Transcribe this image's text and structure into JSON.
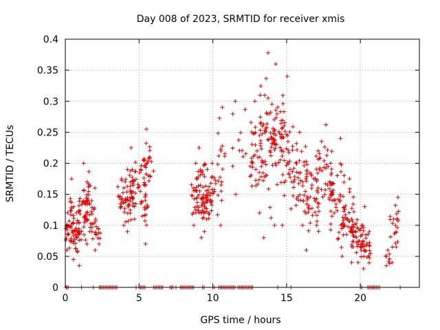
{
  "chart_data": {
    "type": "scatter",
    "title": "Day 008 of 2023, SRMTID for receiver xmis",
    "xlabel": "GPS time / hours",
    "ylabel": "SRMTID / TECUs",
    "xlim": [
      0,
      24
    ],
    "ylim": [
      0,
      0.4
    ],
    "xticks": [
      0,
      5,
      10,
      15,
      20
    ],
    "xtick_labels": [
      "0",
      "5",
      "10",
      "15",
      "20"
    ],
    "yticks": [
      0,
      0.05,
      0.1,
      0.15,
      0.2,
      0.25,
      0.3,
      0.35,
      0.4
    ],
    "ytick_labels": [
      "0",
      "0.05",
      "0.1",
      "0.15",
      "0.2",
      "0.25",
      "0.3",
      "0.35",
      "0.4"
    ],
    "grid": true,
    "marker": "plus",
    "color": "#e00000",
    "series": [
      {
        "name": "SRMTID",
        "note": "approximate per-time-window value ranges read from the scatter cloud",
        "clusters": [
          {
            "x": [
              0.0,
              0.3
            ],
            "y": [
              0.06,
              0.12
            ],
            "n": 14
          },
          {
            "x": [
              0.2,
              0.6
            ],
            "y": [
              0.045,
              0.13
            ],
            "n": 22
          },
          {
            "x": [
              0.3,
              0.45
            ],
            "y": [
              0.1,
              0.175
            ],
            "n": 10
          },
          {
            "x": [
              0.6,
              1.0
            ],
            "y": [
              0.035,
              0.12
            ],
            "n": 28
          },
          {
            "x": [
              0.9,
              1.5
            ],
            "y": [
              0.07,
              0.17
            ],
            "n": 30
          },
          {
            "x": [
              1.2,
              1.7
            ],
            "y": [
              0.09,
              0.2
            ],
            "n": 26
          },
          {
            "x": [
              1.6,
              2.1
            ],
            "y": [
              0.06,
              0.16
            ],
            "n": 22
          },
          {
            "x": [
              2.0,
              2.4
            ],
            "y": [
              0.07,
              0.11
            ],
            "n": 10
          },
          {
            "x": [
              3.5,
              4.3
            ],
            "y": [
              0.1,
              0.175
            ],
            "n": 26
          },
          {
            "x": [
              4.0,
              4.6
            ],
            "y": [
              0.09,
              0.19
            ],
            "n": 30
          },
          {
            "x": [
              4.4,
              5.2
            ],
            "y": [
              0.11,
              0.225
            ],
            "n": 32
          },
          {
            "x": [
              5.1,
              5.6
            ],
            "y": [
              0.07,
              0.19
            ],
            "n": 20
          },
          {
            "x": [
              5.3,
              6.0
            ],
            "y": [
              0.13,
              0.255
            ],
            "n": 28
          },
          {
            "x": [
              8.5,
              9.1
            ],
            "y": [
              0.1,
              0.2
            ],
            "n": 26
          },
          {
            "x": [
              8.9,
              9.6
            ],
            "y": [
              0.09,
              0.225
            ],
            "n": 36
          },
          {
            "x": [
              9.2,
              10.0
            ],
            "y": [
              0.08,
              0.19
            ],
            "n": 34
          },
          {
            "x": [
              9.8,
              10.6
            ],
            "y": [
              0.1,
              0.2
            ],
            "n": 20
          },
          {
            "x": [
              10.3,
              11.0
            ],
            "y": [
              0.17,
              0.29
            ],
            "n": 12
          },
          {
            "x": [
              11.2,
              12.3
            ],
            "y": [
              0.15,
              0.3
            ],
            "n": 12
          },
          {
            "x": [
              12.5,
              13.4
            ],
            "y": [
              0.12,
              0.3
            ],
            "n": 40
          },
          {
            "x": [
              13.2,
              14.2
            ],
            "y": [
              0.08,
              0.378
            ],
            "n": 46
          },
          {
            "x": [
              13.9,
              14.8
            ],
            "y": [
              0.1,
              0.36
            ],
            "n": 44
          },
          {
            "x": [
              14.5,
              15.5
            ],
            "y": [
              0.1,
              0.34
            ],
            "n": 40
          },
          {
            "x": [
              15.4,
              16.4
            ],
            "y": [
              0.1,
              0.25
            ],
            "n": 40
          },
          {
            "x": [
              16.2,
              17.2
            ],
            "y": [
              0.06,
              0.22
            ],
            "n": 42
          },
          {
            "x": [
              17.0,
              18.1
            ],
            "y": [
              0.1,
              0.262
            ],
            "n": 38
          },
          {
            "x": [
              17.9,
              18.9
            ],
            "y": [
              0.05,
              0.24
            ],
            "n": 44
          },
          {
            "x": [
              18.7,
              19.6
            ],
            "y": [
              0.04,
              0.175
            ],
            "n": 40
          },
          {
            "x": [
              19.4,
              20.3
            ],
            "y": [
              0.04,
              0.13
            ],
            "n": 38
          },
          {
            "x": [
              20.0,
              20.8
            ],
            "y": [
              0.03,
              0.1
            ],
            "n": 34
          },
          {
            "x": [
              21.7,
              22.0
            ],
            "y": [
              0.035,
              0.06
            ],
            "n": 8
          },
          {
            "x": [
              22.0,
              22.6
            ],
            "y": [
              0.04,
              0.145
            ],
            "n": 22
          }
        ],
        "zero_points_x": [
          0.05,
          0.1,
          0.2,
          1.1,
          1.9,
          2.3,
          2.4,
          2.5,
          2.6,
          2.7,
          2.8,
          2.9,
          3.0,
          3.1,
          3.2,
          3.3,
          3.4,
          3.5,
          4.8,
          5.0,
          5.1,
          5.2,
          5.3,
          5.4,
          6.0,
          6.1,
          6.2,
          6.3,
          6.4,
          6.5,
          6.6,
          7.1,
          7.2,
          7.3,
          7.5,
          7.8,
          7.9,
          8.0,
          8.1,
          8.2,
          8.3,
          8.4,
          8.5,
          8.6,
          8.7,
          9.3,
          9.4,
          10.0,
          10.1,
          10.4,
          10.5,
          10.6,
          10.7,
          10.8,
          10.9,
          11.0,
          11.1,
          11.2,
          11.3,
          11.4,
          11.5,
          11.7,
          11.8,
          11.9,
          12.0,
          12.1,
          12.2,
          12.3,
          12.4,
          12.5,
          12.6,
          12.7,
          14.4,
          15.3,
          20.0,
          20.1,
          20.5,
          20.6,
          20.7,
          20.8,
          20.9,
          21.0,
          21.1,
          21.2,
          21.3,
          22.7
        ]
      }
    ]
  }
}
